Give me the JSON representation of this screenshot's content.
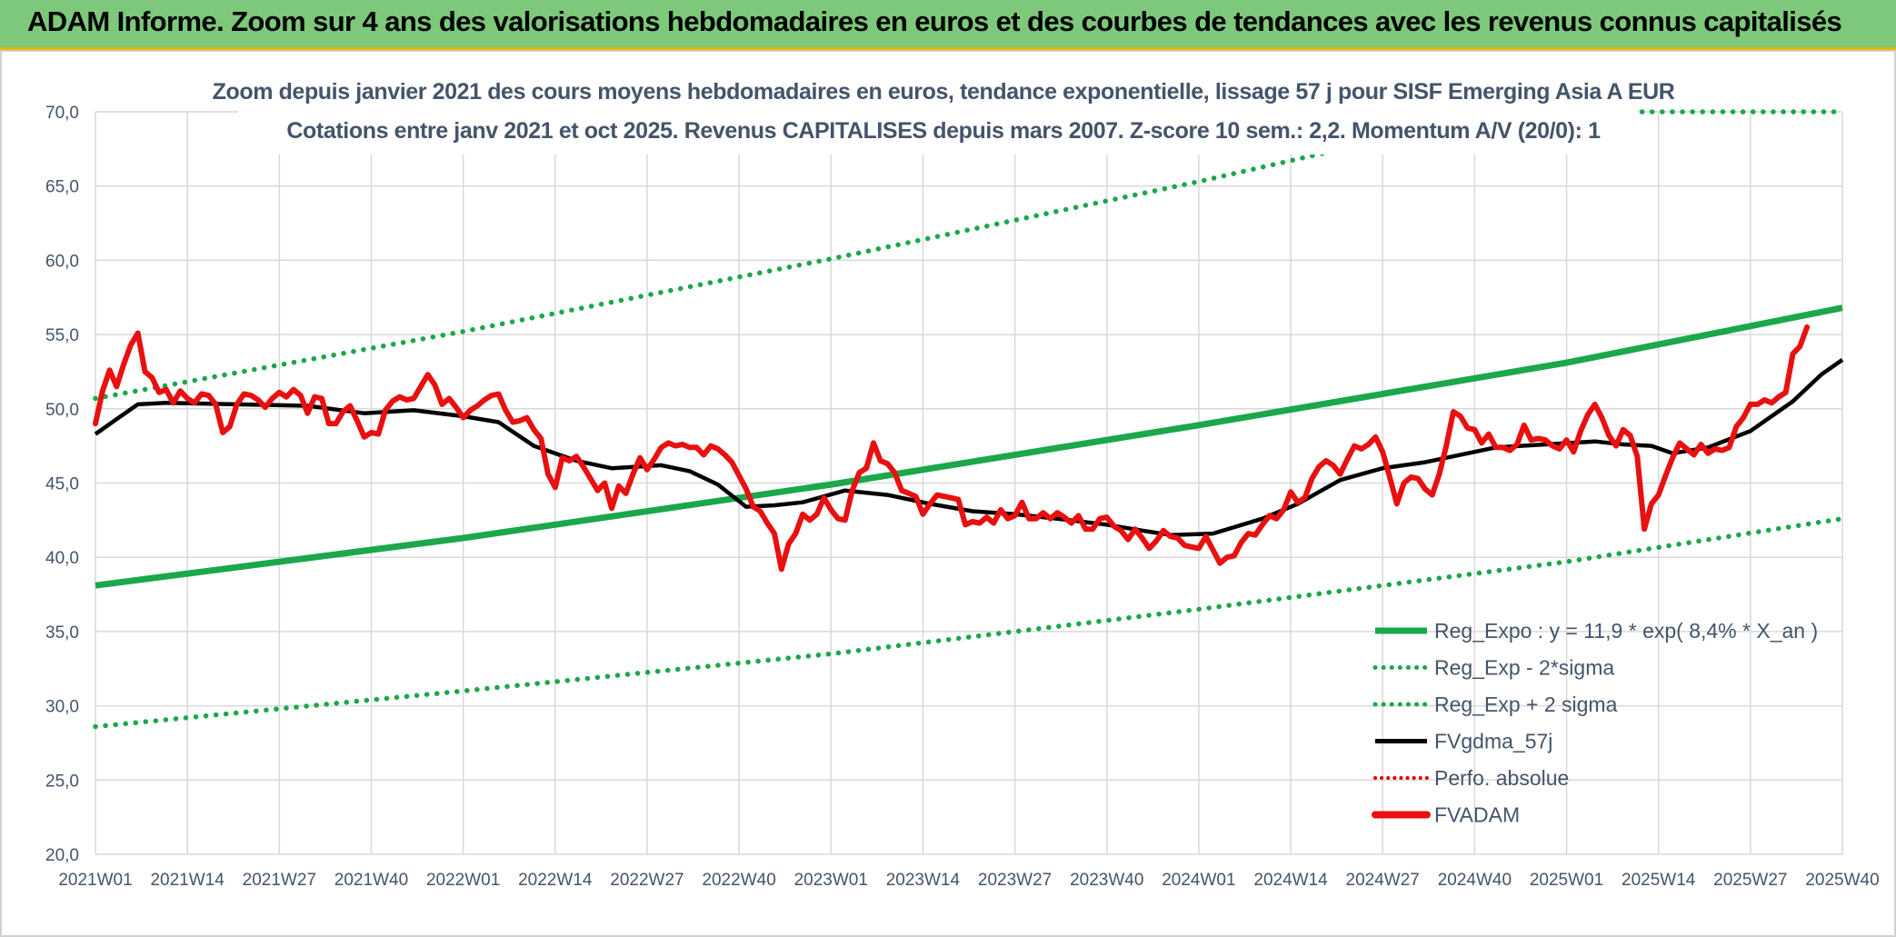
{
  "banner": {
    "title": "ADAM Informe. Zoom sur 4 ans des valorisations hebdomadaires en euros et des courbes de tendances avec les revenus connus capitalisés"
  },
  "chart_data": {
    "type": "line",
    "subtitle_line1": "Zoom depuis janvier 2021 des cours moyens hebdomadaires en euros, tendance exponentielle, lissage 57 j pour SISF Emerging Asia A EUR",
    "subtitle_line2": "Cotations entre janv 2021 et oct 2025. Revenus CAPITALISES depuis mars 2007. Z-score 10 sem.: 2,2. Momentum A/V (20/0): 1",
    "ylim": [
      20,
      70
    ],
    "ytick_labels": [
      "70,0",
      "65,0",
      "60,0",
      "55,0",
      "50,0",
      "45,0",
      "40,0",
      "35,0",
      "30,0",
      "25,0",
      "20,0"
    ],
    "x_range": [
      0,
      247
    ],
    "xtick_labels": [
      "2021W01",
      "2021W14",
      "2021W27",
      "2021W40",
      "2022W01",
      "2022W14",
      "2022W27",
      "2022W40",
      "2023W01",
      "2023W14",
      "2023W27",
      "2023W40",
      "2024W01",
      "2024W14",
      "2024W27",
      "2024W40",
      "2025W01",
      "2025W14",
      "2025W27",
      "2025W40"
    ],
    "xtick_positions": [
      0,
      13,
      26,
      39,
      52,
      65,
      78,
      91,
      104,
      117,
      130,
      143,
      156,
      169,
      182,
      195,
      208,
      221,
      234,
      247
    ],
    "colors": {
      "reg_expo": "#1aa84a",
      "sigma": "#1aa84a",
      "fvgdma": "#000000",
      "perfo": "#e00000",
      "fvadam": "#e81010",
      "grid": "#d9d9d9",
      "axis_text": "#44546a"
    },
    "legend": [
      {
        "key": "reg_expo",
        "label": "Reg_Expo : y = 11,9 * exp( 8,4% *  X_an )"
      },
      {
        "key": "minus2",
        "label": "Reg_Exp - 2*sigma"
      },
      {
        "key": "plus2",
        "label": "Reg_Exp + 2 sigma"
      },
      {
        "key": "fvgdma",
        "label": "FVgdma_57j"
      },
      {
        "key": "perfo",
        "label": "Perfo. absolue"
      },
      {
        "key": "fvadam",
        "label": "FVADAM"
      }
    ],
    "series": {
      "reg_expo_points": [
        [
          0,
          38.1
        ],
        [
          52,
          41.3
        ],
        [
          104,
          44.9
        ],
        [
          156,
          48.9
        ],
        [
          208,
          53.1
        ],
        [
          247,
          56.8
        ]
      ],
      "minus2_points": [
        [
          0,
          28.6
        ],
        [
          52,
          31.0
        ],
        [
          104,
          33.5
        ],
        [
          156,
          36.5
        ],
        [
          208,
          39.7
        ],
        [
          247,
          42.6
        ]
      ],
      "plus2_points": [
        [
          0,
          50.7
        ],
        [
          52,
          55.2
        ],
        [
          104,
          60.1
        ],
        [
          156,
          65.3
        ],
        [
          180,
          67.9
        ]
      ],
      "plus2_cap_points": [
        [
          193,
          70.0
        ],
        [
          247,
          70.0
        ]
      ],
      "fvgdma_points": [
        [
          0,
          48.3
        ],
        [
          3,
          49.3
        ],
        [
          6,
          50.3
        ],
        [
          10,
          50.4
        ],
        [
          20,
          50.3
        ],
        [
          30,
          50.2
        ],
        [
          38,
          49.7
        ],
        [
          45,
          49.9
        ],
        [
          52,
          49.5
        ],
        [
          57,
          49.1
        ],
        [
          62,
          47.5
        ],
        [
          68,
          46.5
        ],
        [
          73,
          46.0
        ],
        [
          80,
          46.2
        ],
        [
          84,
          45.8
        ],
        [
          88,
          44.9
        ],
        [
          92,
          43.4
        ],
        [
          96,
          43.5
        ],
        [
          100,
          43.7
        ],
        [
          106,
          44.5
        ],
        [
          112,
          44.2
        ],
        [
          118,
          43.6
        ],
        [
          124,
          43.1
        ],
        [
          130,
          42.9
        ],
        [
          136,
          42.6
        ],
        [
          143,
          42.2
        ],
        [
          148,
          41.8
        ],
        [
          152,
          41.5
        ],
        [
          158,
          41.6
        ],
        [
          165,
          42.6
        ],
        [
          170,
          43.6
        ],
        [
          176,
          45.2
        ],
        [
          182,
          46.0
        ],
        [
          188,
          46.4
        ],
        [
          194,
          47.0
        ],
        [
          198,
          47.4
        ],
        [
          205,
          47.6
        ],
        [
          212,
          47.8
        ],
        [
          216,
          47.6
        ],
        [
          220,
          47.5
        ],
        [
          223,
          47.0
        ],
        [
          228,
          47.4
        ],
        [
          234,
          48.5
        ],
        [
          240,
          50.5
        ],
        [
          244,
          52.3
        ],
        [
          247,
          53.3
        ]
      ],
      "fvadam_values": [
        49.0,
        51.2,
        52.6,
        51.5,
        53.0,
        54.3,
        55.1,
        52.5,
        52.1,
        51.1,
        51.3,
        50.4,
        51.2,
        50.7,
        50.4,
        51.0,
        50.9,
        50.3,
        48.4,
        48.8,
        50.3,
        51.0,
        50.9,
        50.6,
        50.1,
        50.7,
        51.1,
        50.8,
        51.3,
        50.9,
        49.7,
        50.8,
        50.7,
        49.0,
        49.0,
        49.8,
        50.2,
        49.2,
        48.1,
        48.4,
        48.3,
        49.9,
        50.5,
        50.8,
        50.6,
        50.7,
        51.5,
        52.3,
        51.6,
        50.3,
        50.7,
        50.1,
        49.4,
        49.9,
        50.2,
        50.6,
        50.9,
        51.0,
        49.9,
        49.1,
        49.2,
        49.4,
        48.6,
        48.0,
        45.6,
        44.7,
        46.7,
        46.5,
        46.8,
        46.1,
        45.3,
        44.5,
        45.0,
        43.3,
        44.8,
        44.3,
        45.6,
        46.7,
        45.9,
        46.6,
        47.4,
        47.7,
        47.5,
        47.6,
        47.4,
        47.4,
        46.9,
        47.5,
        47.3,
        46.9,
        46.4,
        45.5,
        44.6,
        43.4,
        43.1,
        42.3,
        41.6,
        39.2,
        40.9,
        41.6,
        42.9,
        42.5,
        42.9,
        44.0,
        43.2,
        42.6,
        42.5,
        44.5,
        45.7,
        46.0,
        47.7,
        46.5,
        46.3,
        45.7,
        44.5,
        44.3,
        44.1,
        42.9,
        43.6,
        44.2,
        44.1,
        44.0,
        43.9,
        42.2,
        42.4,
        42.3,
        42.7,
        42.3,
        43.2,
        42.6,
        42.8,
        43.7,
        42.6,
        42.6,
        43.0,
        42.6,
        43.0,
        42.7,
        42.3,
        42.8,
        41.9,
        41.9,
        42.6,
        42.7,
        42.1,
        41.8,
        41.2,
        41.9,
        41.3,
        40.6,
        41.1,
        41.8,
        41.4,
        41.3,
        40.8,
        40.7,
        40.6,
        41.4,
        40.5,
        39.6,
        40.0,
        40.1,
        41.0,
        41.6,
        41.5,
        42.2,
        42.8,
        42.6,
        43.2,
        44.4,
        43.7,
        44.0,
        45.3,
        46.1,
        46.5,
        46.2,
        45.6,
        46.6,
        47.5,
        47.3,
        47.6,
        48.1,
        47.1,
        45.4,
        43.6,
        45.0,
        45.4,
        45.3,
        44.6,
        44.2,
        45.6,
        47.5,
        49.8,
        49.5,
        48.7,
        48.6,
        47.7,
        48.3,
        47.4,
        47.4,
        47.2,
        47.6,
        48.9,
        47.9,
        48.0,
        47.9,
        47.5,
        47.3,
        47.9,
        47.1,
        48.5,
        49.6,
        50.3,
        49.4,
        48.2,
        47.5,
        48.6,
        48.2,
        46.8,
        41.9,
        43.6,
        44.2,
        45.5,
        46.7,
        47.7,
        47.3,
        46.9,
        47.6,
        47.0,
        47.3,
        47.2,
        47.4,
        48.8,
        49.4,
        50.3,
        50.3,
        50.6,
        50.4,
        50.8,
        51.1,
        53.7,
        54.2,
        55.5
      ]
    }
  }
}
